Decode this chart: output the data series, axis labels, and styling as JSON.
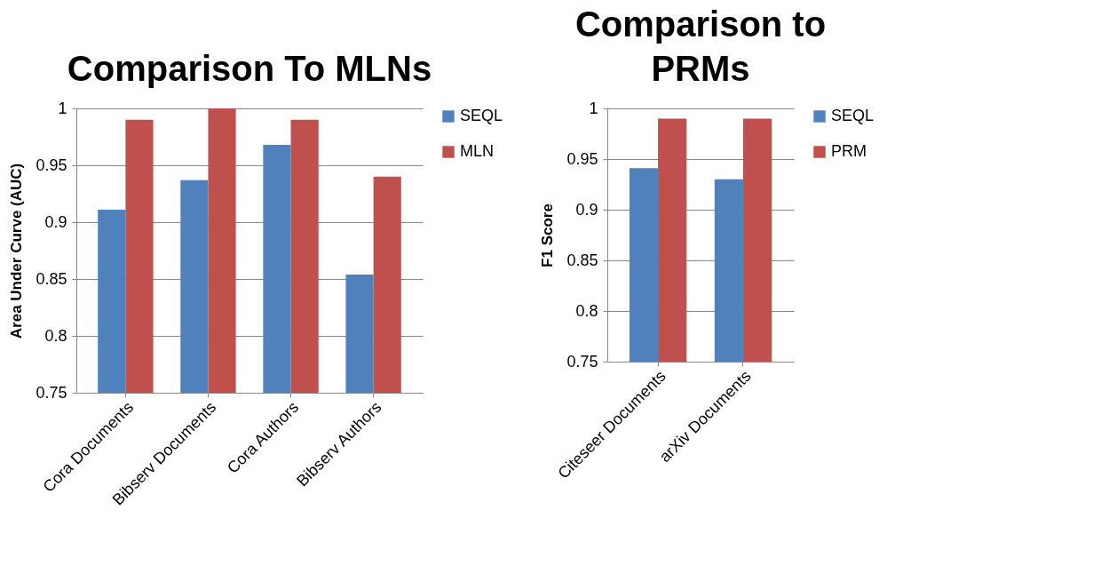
{
  "chart_data": [
    {
      "type": "bar",
      "title": "Comparison To MLNs",
      "ylabel": "Area Under Curve (AUC)",
      "categories": [
        "Cora Documents",
        "Bibserv Documents",
        "Cora Authors",
        "Bibserv Authors"
      ],
      "series": [
        {
          "name": "SEQL",
          "color": "#4f81bd",
          "values": [
            0.911,
            0.937,
            0.968,
            0.854
          ]
        },
        {
          "name": "MLN",
          "color": "#c0504d",
          "values": [
            0.99,
            1.0,
            0.99,
            0.94
          ]
        }
      ],
      "ylim": [
        0.75,
        1
      ],
      "yticks": [
        0.75,
        0.8,
        0.85,
        0.9,
        0.95,
        1
      ],
      "grid": "y",
      "legend": "right"
    },
    {
      "type": "bar",
      "title": "Comparison to PRMs",
      "ylabel": "F1  Score",
      "categories": [
        "Citeseer Documents",
        "arXiv Documents"
      ],
      "series": [
        {
          "name": "SEQL",
          "color": "#4f81bd",
          "values": [
            0.941,
            0.93
          ]
        },
        {
          "name": "PRM",
          "color": "#c0504d",
          "values": [
            0.99,
            0.99
          ]
        }
      ],
      "ylim": [
        0.75,
        1
      ],
      "yticks": [
        0.75,
        0.8,
        0.85,
        0.9,
        0.95,
        1
      ],
      "grid": "y",
      "legend": "right"
    }
  ]
}
